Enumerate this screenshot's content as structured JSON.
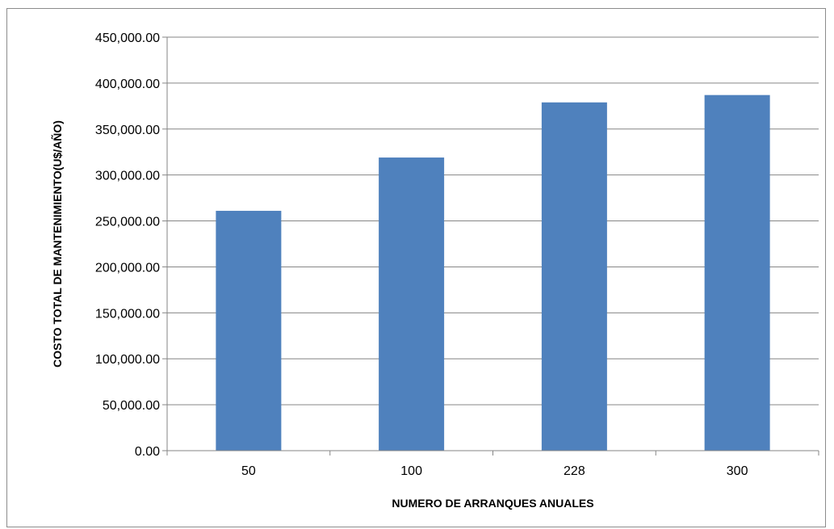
{
  "chart_data": {
    "type": "bar",
    "title": "",
    "xlabel": "NUMERO DE ARRANQUES ANUALES",
    "ylabel": "COSTO TOTAL DE MANTENIMIENTO(U$/AÑO)",
    "categories": [
      "50",
      "100",
      "228",
      "300"
    ],
    "values": [
      261000,
      319000,
      379000,
      387000
    ],
    "ylim": [
      0,
      450000
    ],
    "y_ticks": [
      0,
      50000,
      100000,
      150000,
      200000,
      250000,
      300000,
      350000,
      400000,
      450000
    ],
    "y_tick_labels": [
      "0.00",
      "50,000.00",
      "100,000.00",
      "150,000.00",
      "200,000.00",
      "250,000.00",
      "300,000.00",
      "350,000.00",
      "400,000.00",
      "450,000.00"
    ],
    "grid": true,
    "legend": "none",
    "bar_color": "#4f81bd",
    "grid_color": "#868686"
  }
}
